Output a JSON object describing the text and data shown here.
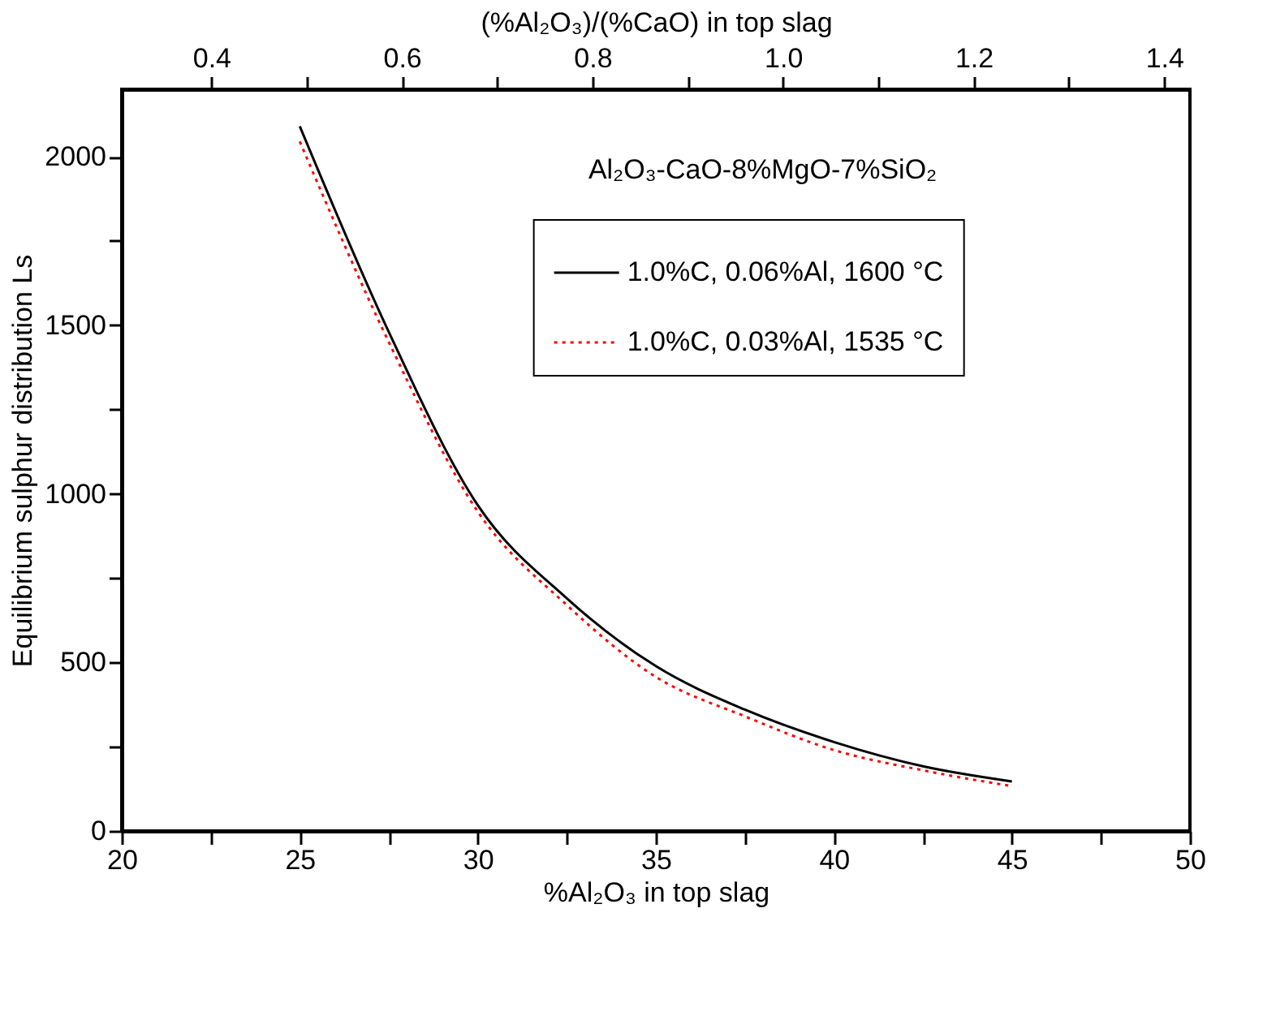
{
  "chart_data": {
    "type": "line",
    "xlabel": "%Al₂O₃ in top slag",
    "ylabel": "Equilibrium sulphur distribution Ls",
    "x2label": "(%Al₂O₃)/(%CaO) in top slag",
    "annotations": [
      "Al₂O₃-CaO-8%MgO-7%SiO₂"
    ],
    "x": [
      25,
      27.5,
      30,
      32.5,
      35,
      37.5,
      40,
      42.5,
      45
    ],
    "series": [
      {
        "name": "1.0%C, 0.06%Al, 1600 °C",
        "color": "#000000",
        "line_style": "solid",
        "values": [
          2090,
          1480,
          966,
          690,
          489,
          360,
          264,
          192,
          147
        ]
      },
      {
        "name": "1.0%C, 0.03%Al, 1535 °C",
        "color": "#ff0000",
        "line_style": "dotted",
        "values": [
          2045,
          1450,
          947,
          670,
          457,
          340,
          240,
          180,
          133
        ]
      }
    ],
    "xlim": [
      20,
      50
    ],
    "xticks": [
      20,
      {
        "value": 22.5,
        "label": null
      },
      25,
      {
        "value": 27.5,
        "label": null
      },
      30,
      {
        "value": 32.5,
        "label": null
      },
      35,
      {
        "value": 37.5,
        "label": null
      },
      40,
      {
        "value": 42.5,
        "label": null
      },
      45,
      {
        "value": 47.5,
        "label": null
      },
      50
    ],
    "ylim": [
      0,
      2200
    ],
    "yticks": [
      0,
      {
        "value": 250,
        "label": null
      },
      500,
      {
        "value": 750,
        "label": null
      },
      1000,
      {
        "value": 1250,
        "label": null
      },
      1500,
      {
        "value": 1750,
        "label": null
      },
      2000
    ],
    "x2lim": [
      0.306,
      1.427
    ],
    "x2ticks": [
      0.4,
      {
        "value": 0.5,
        "label": null
      },
      {
        "value": 0.6,
        "label": "0.6"
      },
      {
        "value": 0.7,
        "label": null
      },
      {
        "value": 0.8,
        "label": "0.8"
      },
      {
        "value": 0.9,
        "label": null
      },
      {
        "value": 1.0,
        "label": "1.0"
      },
      {
        "value": 1.1,
        "label": null
      },
      {
        "value": 1.2,
        "label": "1.2"
      },
      {
        "value": 1.3,
        "label": null
      },
      {
        "value": 1.4,
        "label": "1.4"
      }
    ],
    "grid": false,
    "legend": "top right",
    "marker": "none"
  }
}
